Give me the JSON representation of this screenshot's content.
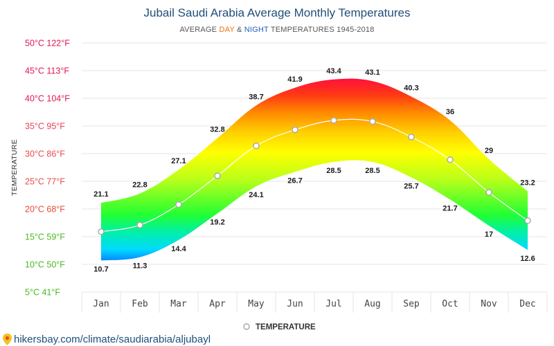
{
  "chart_data": {
    "type": "area",
    "title": "Jubail Saudi Arabia Average Monthly Temperatures",
    "subtitle": {
      "prefix": "AVERAGE ",
      "day": "DAY",
      "amp": " & ",
      "night": "NIGHT",
      "suffix": " TEMPERATURES 1945-2018"
    },
    "ylabel": "TEMPERATURE",
    "xlabel": "",
    "categories": [
      "Jan",
      "Feb",
      "Mar",
      "Apr",
      "May",
      "Jun",
      "Jul",
      "Aug",
      "Sep",
      "Oct",
      "Nov",
      "Dec"
    ],
    "series": [
      {
        "name": "Day",
        "values": [
          21.1,
          22.8,
          27.1,
          32.8,
          38.7,
          41.9,
          43.4,
          43.1,
          40.3,
          36,
          29,
          23.2
        ]
      },
      {
        "name": "Night",
        "values": [
          10.7,
          11.3,
          14.4,
          19.2,
          24.1,
          26.7,
          28.5,
          28.5,
          25.7,
          21.7,
          17,
          12.6
        ]
      },
      {
        "name": "TEMPERATURE",
        "values": [
          15.9,
          17.1,
          20.8,
          26.0,
          31.4,
          34.3,
          36.0,
          35.8,
          33.0,
          28.9,
          23.0,
          17.9
        ]
      }
    ],
    "ylim": [
      5,
      50
    ],
    "yticks": [
      {
        "value": 50,
        "label": "50°C 122°F"
      },
      {
        "value": 45,
        "label": "45°C 113°F"
      },
      {
        "value": 40,
        "label": "40°C 104°F"
      },
      {
        "value": 35,
        "label": "35°C 95°F"
      },
      {
        "value": 30,
        "label": "30°C 86°F"
      },
      {
        "value": 25,
        "label": "25°C 77°F"
      },
      {
        "value": 20,
        "label": "20°C 68°F"
      },
      {
        "value": 15,
        "label": "15°C 59°F"
      },
      {
        "value": 10,
        "label": "10°C 50°F"
      },
      {
        "value": 5,
        "label": "5°C 41°F"
      }
    ],
    "grid": true,
    "legend": {
      "label": "TEMPERATURE",
      "position": "bottom-center"
    }
  },
  "colors": {
    "title": "#1f4e79",
    "day": "#e8730c",
    "night": "#1f5fbf",
    "grid": "#e6e6e6",
    "avg_line": "#ffffff"
  },
  "source": "hikersbay.com/climate/saudiarabia/aljubayl"
}
